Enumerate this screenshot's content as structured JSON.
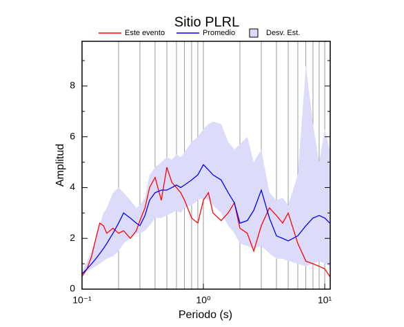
{
  "chart_data": {
    "type": "line",
    "title": "Sitio PLRL",
    "x_label": "Periodo (s)",
    "y_label": "Amplitud",
    "log_x": true,
    "xlim": [
      0.1,
      11.1
    ],
    "ylim": [
      0,
      9.76
    ],
    "xticks": [
      {
        "value": 0.1,
        "label": "10⁻¹"
      },
      {
        "value": 1,
        "label": "10⁰"
      },
      {
        "value": 10,
        "label": "10¹"
      }
    ],
    "xgrid": [
      0.2,
      0.3,
      0.4,
      0.5,
      0.6,
      0.7,
      0.8,
      0.9,
      1,
      2,
      3,
      4,
      5,
      6,
      7,
      8,
      9,
      10
    ],
    "yticks": [
      0,
      2,
      4,
      6,
      8
    ],
    "yminor": [
      1,
      3,
      5,
      7,
      9
    ],
    "x": [
      0.1,
      0.11,
      0.12,
      0.13,
      0.14,
      0.15,
      0.16,
      0.18,
      0.2,
      0.22,
      0.25,
      0.28,
      0.3,
      0.33,
      0.36,
      0.4,
      0.45,
      0.5,
      0.55,
      0.6,
      0.65,
      0.7,
      0.8,
      0.9,
      1.0,
      1.1,
      1.2,
      1.4,
      1.6,
      1.8,
      2.0,
      2.3,
      2.6,
      3.0,
      3.5,
      4.0,
      4.5,
      5.0,
      6.0,
      7.0,
      8.0,
      9.0,
      10,
      11
    ],
    "band": {
      "name": "Desv. Est.",
      "color": "#dcdcfa",
      "lower": [
        0.5,
        0.7,
        0.8,
        0.9,
        1.0,
        1.1,
        1.2,
        1.3,
        1.5,
        1.8,
        2.0,
        2.2,
        2.2,
        2.3,
        2.5,
        2.8,
        2.8,
        2.9,
        3.0,
        3.1,
        3.0,
        3.2,
        3.3,
        3.5,
        3.6,
        3.5,
        3.3,
        3.0,
        2.5,
        2.2,
        1.8,
        1.7,
        1.6,
        1.7,
        1.4,
        1.2,
        1.2,
        1.1,
        1.0,
        0.9,
        1.0,
        1.1,
        1.0,
        0.9
      ],
      "upper": [
        0.7,
        1.1,
        1.5,
        2.0,
        2.5,
        3.0,
        3.2,
        3.8,
        4.0,
        3.8,
        3.5,
        3.2,
        3.3,
        3.6,
        4.5,
        4.8,
        5.0,
        5.2,
        5.1,
        5.3,
        5.2,
        5.4,
        5.8,
        6.0,
        6.3,
        6.5,
        6.6,
        6.5,
        5.8,
        5.5,
        5.7,
        6.0,
        5.0,
        5.5,
        3.8,
        3.5,
        3.6,
        3.3,
        4.5,
        8.8,
        6.5,
        5.0,
        6.3,
        5.5
      ]
    },
    "series": [
      {
        "name": "Este evento",
        "color": "#ff0000",
        "values": [
          0.5,
          0.8,
          1.3,
          2.0,
          2.6,
          2.5,
          2.2,
          2.4,
          2.2,
          2.3,
          2.0,
          2.3,
          2.7,
          3.2,
          4.0,
          4.4,
          3.5,
          4.8,
          4.2,
          4.0,
          3.8,
          3.5,
          2.8,
          2.6,
          3.5,
          3.8,
          3.0,
          2.7,
          3.0,
          3.4,
          2.4,
          2.2,
          1.5,
          2.5,
          3.2,
          2.9,
          2.6,
          3.0,
          1.8,
          1.1,
          1.0,
          0.9,
          0.8,
          0.5
        ]
      },
      {
        "name": "Promedio",
        "color": "#0000ff",
        "values": [
          0.6,
          0.8,
          1.0,
          1.2,
          1.4,
          1.6,
          1.8,
          2.2,
          2.6,
          3.0,
          2.8,
          2.6,
          2.5,
          2.9,
          3.5,
          3.8,
          3.9,
          3.9,
          4.0,
          4.1,
          4.0,
          4.1,
          4.3,
          4.5,
          4.9,
          4.7,
          4.5,
          4.3,
          3.8,
          3.4,
          2.6,
          2.7,
          3.1,
          3.9,
          2.8,
          2.1,
          2.0,
          1.9,
          2.1,
          2.5,
          2.8,
          2.9,
          2.8,
          2.6
        ]
      }
    ]
  }
}
